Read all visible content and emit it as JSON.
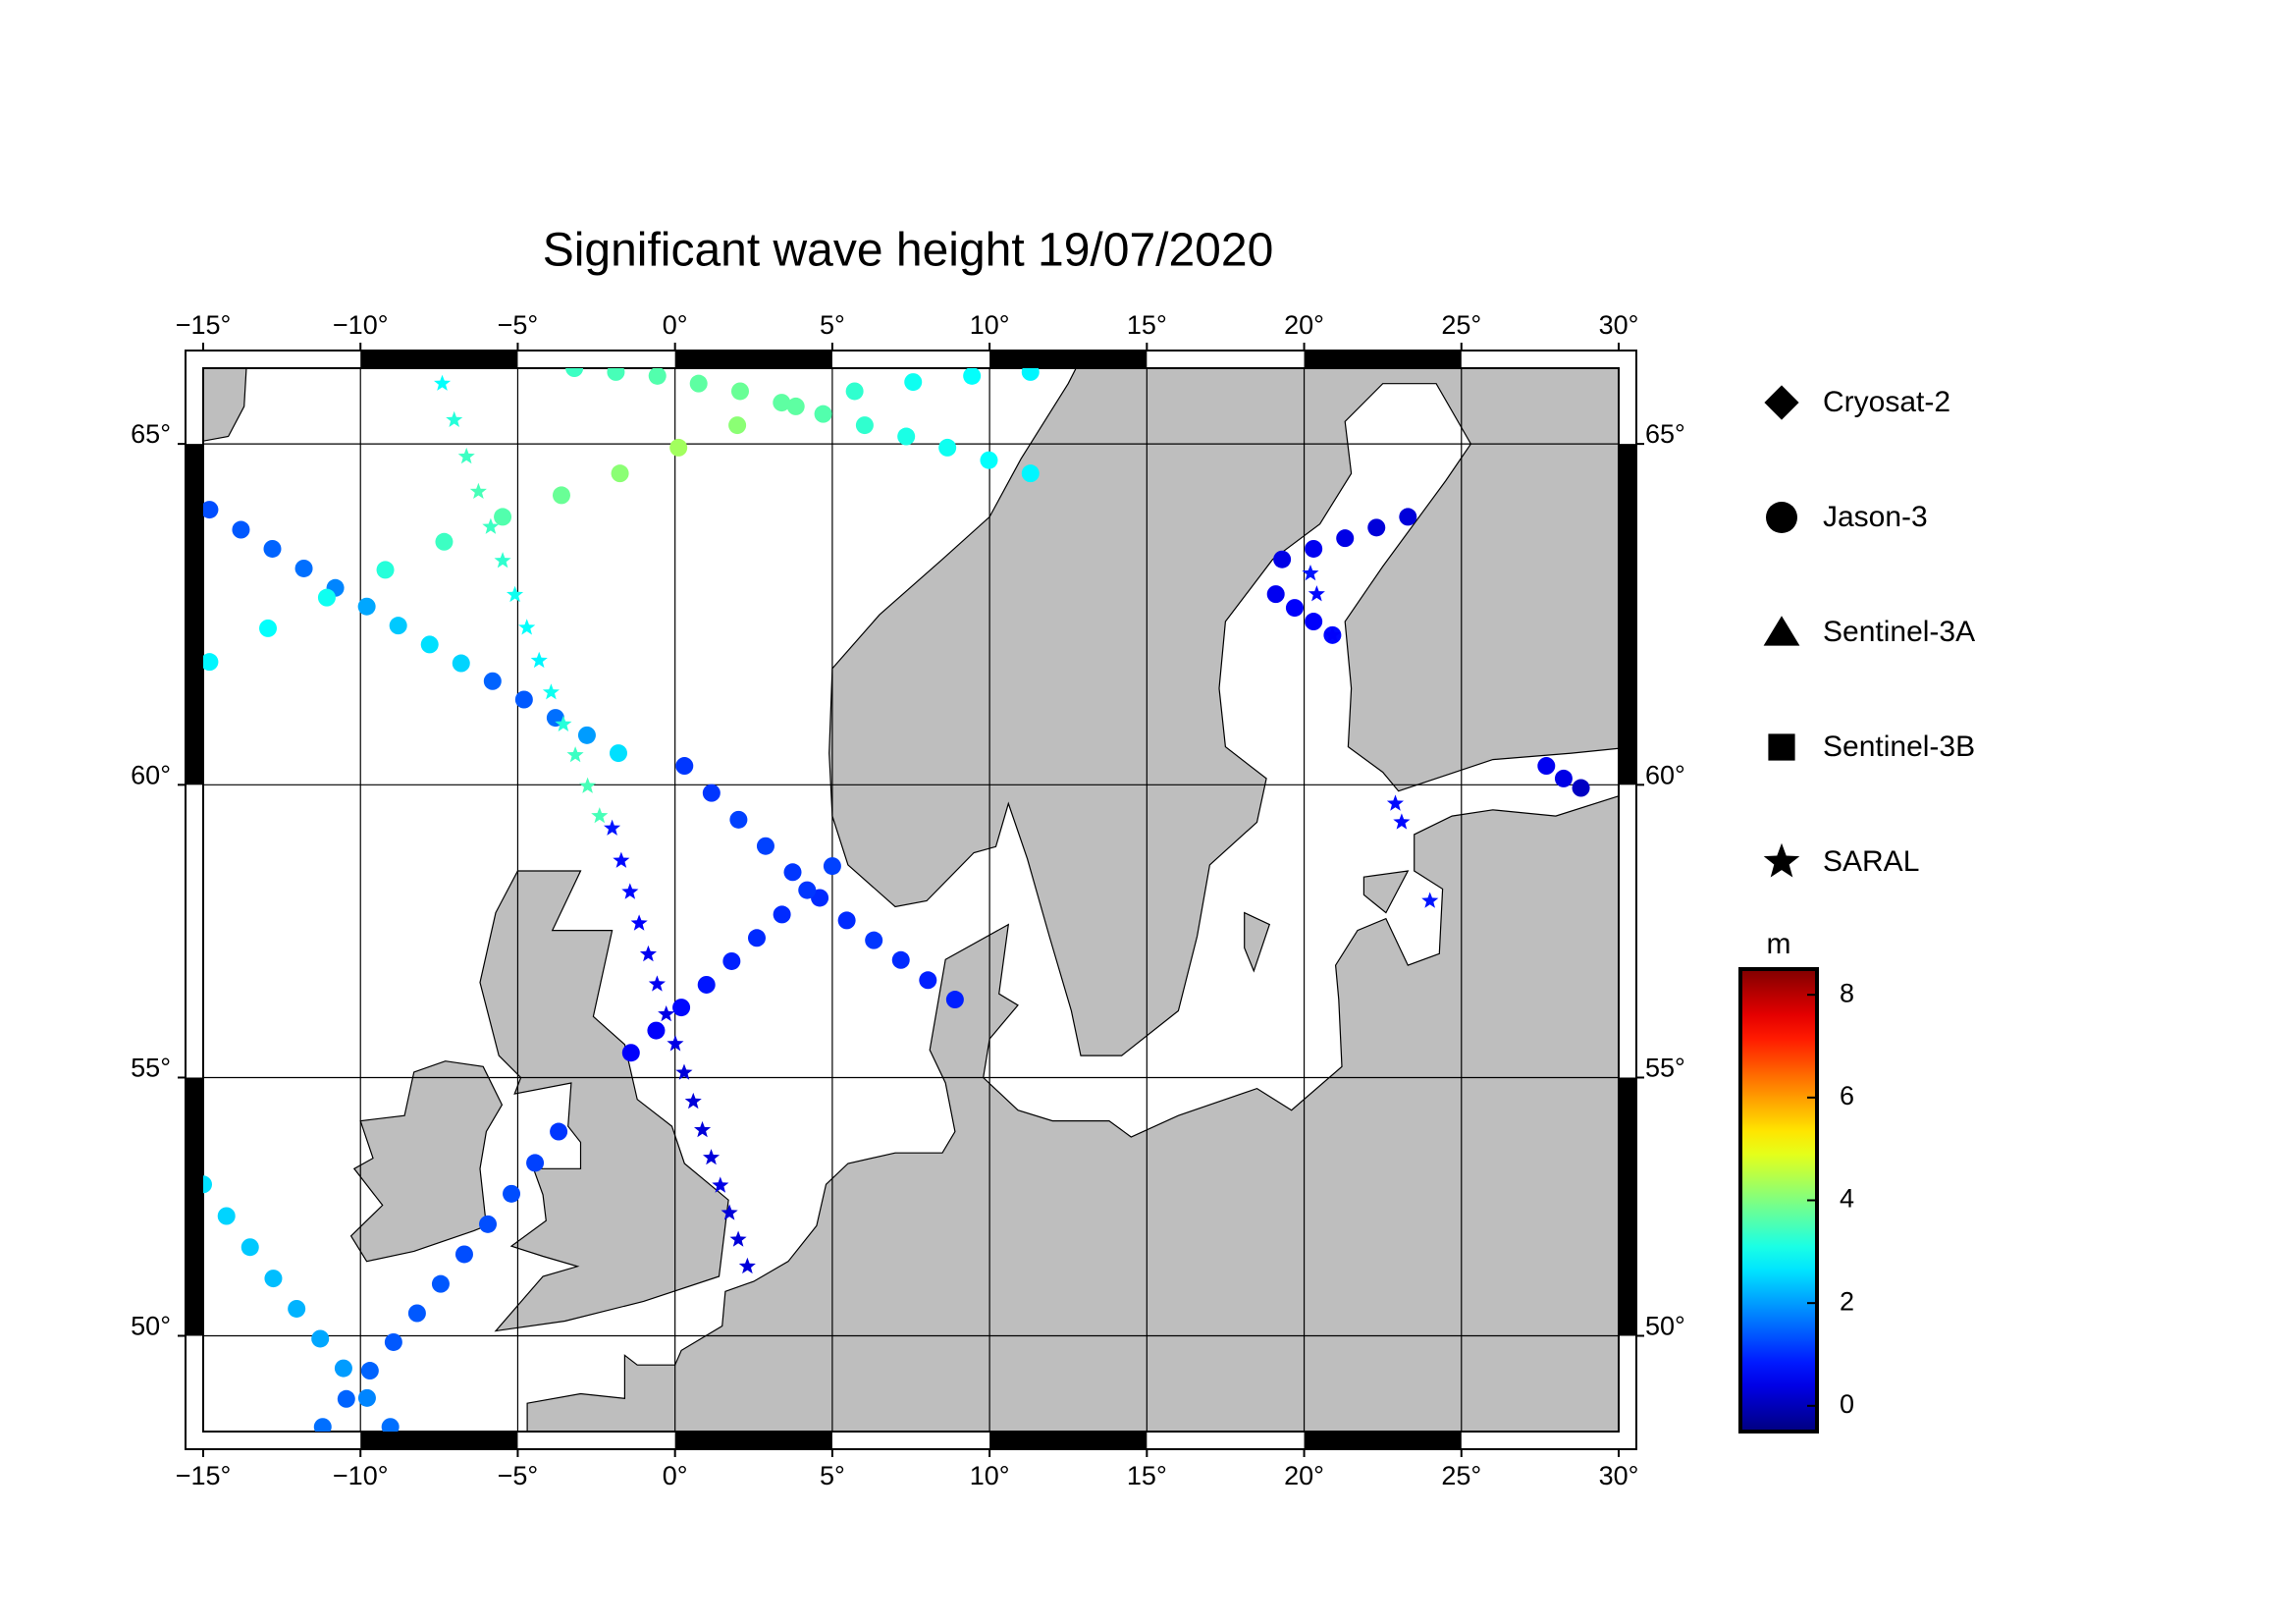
{
  "chart_data": {
    "type": "map",
    "title": "Significant wave height 19/07/2020",
    "xlim": [
      -15,
      30
    ],
    "ylim": [
      48,
      66
    ],
    "xticks": [
      {
        "value": -15,
        "label": "−15°"
      },
      {
        "value": -10,
        "label": "−10°"
      },
      {
        "value": -5,
        "label": "−5°"
      },
      {
        "value": 0,
        "label": "0°"
      },
      {
        "value": 5,
        "label": "5°"
      },
      {
        "value": 10,
        "label": "10°"
      },
      {
        "value": 15,
        "label": "15°"
      },
      {
        "value": 20,
        "label": "20°"
      },
      {
        "value": 25,
        "label": "25°"
      },
      {
        "value": 30,
        "label": "30°"
      }
    ],
    "yticks": [
      {
        "value": 50,
        "label": "50°"
      },
      {
        "value": 55,
        "label": "55°"
      },
      {
        "value": 60,
        "label": "60°"
      },
      {
        "value": 65,
        "label": "65°"
      }
    ],
    "grid": true,
    "projection": "mercator",
    "land_color": "#bebebe",
    "colorbar": {
      "label": "m",
      "clim": [
        -0.5,
        8.5
      ],
      "ticks": [
        0,
        2,
        4,
        6,
        8
      ],
      "colormap": "jet"
    },
    "series": [
      {
        "name": "Cryosat-2",
        "marker": "diamond",
        "tracks": []
      },
      {
        "name": "Jason-3",
        "marker": "circle",
        "tracks": [
          {
            "lon": [
              -14.8,
              -13.8,
              -12.8,
              -11.8,
              -10.8,
              -9.8,
              -8.8,
              -7.8,
              -6.8,
              -5.8,
              -4.8,
              -3.8,
              -2.8,
              -1.8
            ],
            "lat": [
              64.1,
              63.82,
              63.55,
              63.27,
              62.99,
              62.72,
              62.44,
              62.16,
              61.88,
              61.61,
              61.33,
              61.05,
              60.78,
              60.5
            ],
            "values": [
              1.3,
              1.4,
              1.5,
              1.6,
              1.8,
              2.1,
              2.4,
              2.6,
              2.5,
              1.5,
              1.4,
              1.6,
              2.0,
              2.6
            ]
          },
          {
            "lon": [
              0.3,
              1.16,
              2.02,
              2.88,
              3.74,
              4.6,
              5.46,
              6.32,
              7.18,
              8.04,
              8.9
            ],
            "lat": [
              60.3,
              59.87,
              59.44,
              59.01,
              58.58,
              58.15,
              57.77,
              57.43,
              57.09,
              56.74,
              56.4
            ],
            "values": [
              1.1,
              1.1,
              1.2,
              1.2,
              1.1,
              1.0,
              1.0,
              1.1,
              1.0,
              0.9,
              0.9
            ]
          },
          {
            "lon": [
              -1.4,
              -0.6,
              0.2,
              1.0,
              1.8,
              2.6,
              3.4,
              4.2,
              5.0
            ],
            "lat": [
              55.45,
              55.85,
              56.26,
              56.66,
              57.07,
              57.47,
              57.87,
              58.28,
              58.68
            ],
            "values": [
              0.6,
              0.6,
              0.7,
              0.8,
              0.9,
              1.0,
              1.0,
              1.1,
              1.2
            ]
          },
          {
            "lon": [
              -11.2,
              -10.45,
              -9.7,
              -8.95,
              -8.2,
              -7.45,
              -6.7,
              -5.95,
              -5.2,
              -4.45,
              -3.7
            ],
            "lat": [
              48.1,
              48.69,
              49.28,
              49.87,
              50.46,
              51.05,
              51.64,
              52.23,
              52.82,
              53.41,
              54.0
            ],
            "values": [
              1.6,
              1.5,
              1.5,
              1.4,
              1.4,
              1.4,
              1.3,
              1.3,
              1.3,
              1.2,
              1.1
            ]
          },
          {
            "lon": [
              -15,
              -14.26,
              -13.51,
              -12.77,
              -12.03,
              -11.28,
              -10.54,
              -9.79,
              -9.05
            ],
            "lat": [
              53.0,
              52.39,
              51.78,
              51.16,
              50.55,
              49.94,
              49.33,
              48.71,
              48.1
            ],
            "values": [
              2.6,
              2.5,
              2.4,
              2.3,
              2.2,
              2.1,
              2.0,
              1.8,
              1.6
            ]
          },
          {
            "lon": [
              -3.2,
              -1.88,
              -0.56,
              0.75,
              2.07,
              3.39,
              4.71,
              6.03,
              7.35,
              8.66,
              9.98,
              11.3
            ],
            "lat": [
              66.0,
              65.95,
              65.9,
              65.8,
              65.7,
              65.55,
              65.4,
              65.25,
              65.1,
              64.95,
              64.78,
              64.6
            ],
            "values": [
              3.4,
              3.5,
              3.6,
              3.7,
              3.8,
              3.7,
              3.6,
              3.3,
              3.1,
              3.0,
              2.9,
              2.8
            ]
          },
          {
            "lon": [
              -14.8,
              -12.94,
              -11.07,
              -9.21,
              -7.34,
              -5.48,
              -3.61,
              -1.75,
              0.11,
              1.98,
              3.84,
              5.71,
              7.57,
              9.44,
              11.3
            ],
            "lat": [
              61.9,
              62.4,
              62.85,
              63.25,
              63.65,
              64.0,
              64.3,
              64.6,
              64.95,
              65.25,
              65.5,
              65.7,
              65.82,
              65.9,
              65.95
            ],
            "values": [
              2.8,
              2.9,
              3.0,
              3.2,
              3.4,
              3.6,
              3.8,
              4.1,
              4.3,
              4.1,
              3.7,
              3.3,
              3.0,
              2.9,
              2.8
            ]
          },
          {
            "lon": [
              19.3,
              20.3,
              21.3,
              22.3,
              23.3
            ],
            "lat": [
              63.4,
              63.55,
              63.7,
              63.85,
              64.0
            ],
            "values": [
              0.4,
              0.5,
              0.4,
              0.3,
              0.3
            ]
          },
          {
            "lon": [
              19.1,
              19.7,
              20.3,
              20.9
            ],
            "lat": [
              62.9,
              62.7,
              62.5,
              62.3
            ],
            "values": [
              0.5,
              0.6,
              0.6,
              0.7
            ]
          },
          {
            "lon": [
              27.7,
              28.25,
              28.8
            ],
            "lat": [
              60.3,
              60.1,
              59.95
            ],
            "values": [
              0.5,
              0.4,
              0.1
            ]
          }
        ]
      },
      {
        "name": "Sentinel-3A",
        "marker": "triangle",
        "tracks": []
      },
      {
        "name": "Sentinel-3B",
        "marker": "square",
        "tracks": []
      },
      {
        "name": "SARAL",
        "marker": "star",
        "tracks": [
          {
            "lon": [
              -7.4,
              -7.02,
              -6.63,
              -6.25,
              -5.86,
              -5.48,
              -5.09,
              -4.71,
              -4.32,
              -3.94,
              -3.55,
              -3.17,
              -2.78,
              -2.4
            ],
            "lat": [
              65.8,
              65.32,
              64.83,
              64.35,
              63.86,
              63.38,
              62.89,
              62.41,
              61.92,
              61.44,
              60.95,
              60.47,
              59.98,
              59.5
            ],
            "values": [
              2.9,
              3.2,
              3.4,
              3.5,
              3.4,
              3.3,
              3.0,
              2.9,
              2.8,
              3.0,
              3.2,
              3.4,
              3.5,
              3.5
            ]
          },
          {
            "lon": [
              -2.0,
              -1.71,
              -1.43,
              -1.14,
              -0.85,
              -0.57,
              -0.28,
              0.01,
              0.29,
              0.58,
              0.87,
              1.15,
              1.44,
              1.73,
              2.01,
              2.3
            ],
            "lat": [
              59.3,
              58.77,
              58.25,
              57.72,
              57.19,
              56.67,
              56.14,
              55.61,
              55.09,
              54.56,
              54.03,
              53.51,
              52.98,
              52.45,
              51.93,
              51.4
            ],
            "values": [
              0.8,
              0.7,
              0.7,
              0.6,
              0.5,
              0.5,
              0.4,
              0.4,
              0.3,
              0.3,
              0.3,
              0.3,
              0.4,
              0.3,
              0.3,
              0.3
            ]
          },
          {
            "lon": [
              20.2,
              20.4,
              20.9
            ],
            "lat": [
              63.2,
              62.9,
              62.3
            ],
            "values": [
              0.8,
              0.7,
              0.6
            ]
          },
          {
            "lon": [
              22.9,
              23.1,
              24.0
            ],
            "lat": [
              59.7,
              59.4,
              58.1
            ],
            "values": [
              0.7,
              0.7,
              0.8
            ]
          }
        ]
      }
    ]
  }
}
